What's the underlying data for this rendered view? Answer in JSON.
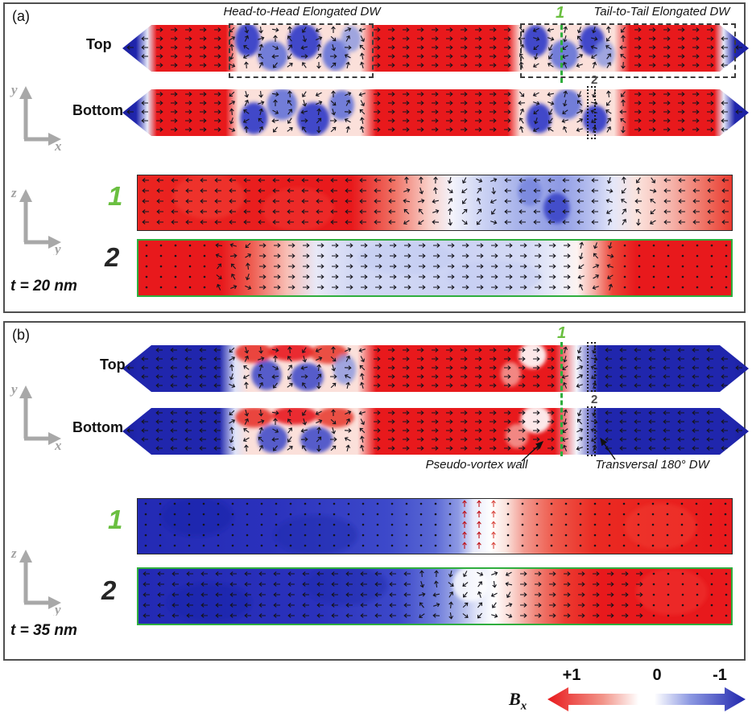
{
  "colors": {
    "red_pos": "#e8191c",
    "blue_neg": "#2026ad",
    "cut_green": "#2fae3e",
    "label_green": "#6abf40",
    "axis_gray": "#a2a2a2",
    "panel_border": "#4f4f4f"
  },
  "axes": {
    "x": "x",
    "y": "y",
    "z": "z"
  },
  "panel_a": {
    "tag": "(a)",
    "hh_annotation": "Head-to-Head Elongated DW",
    "tt_annotation": "Tail-to-Tail Elongated DW",
    "top_label": "Top",
    "bottom_label": "Bottom",
    "cut1": "1",
    "cut2": "2",
    "thickness": "t = 20 nm"
  },
  "panel_b": {
    "tag": "(b)",
    "top_label": "Top",
    "bottom_label": "Bottom",
    "cut1": "1",
    "cut2": "2",
    "pseudo_vortex": "Pseudo-vortex wall",
    "transversal": "Transversal 180° DW",
    "thickness": "t = 35 nm"
  },
  "colorbar": {
    "symbol": "B",
    "subscript": "x",
    "tick_pos": "+1",
    "tick_zero": "0",
    "tick_neg": "-1",
    "gradient": [
      [
        0,
        "#e8191c"
      ],
      [
        28,
        "#f2958a"
      ],
      [
        46,
        "#ffffff"
      ],
      [
        54,
        "#ffffff"
      ],
      [
        72,
        "#8d99e2"
      ],
      [
        100,
        "#2026ad"
      ]
    ]
  },
  "strips": {
    "a_top": {
      "shape": "pointed",
      "stops": [
        [
          0,
          "#1b1f9e"
        ],
        [
          2.2,
          "#2026ad"
        ],
        [
          4,
          "#e6e9f8"
        ],
        [
          5.5,
          "#e8191c"
        ],
        [
          16.5,
          "#e8191c"
        ],
        [
          18.5,
          "#fbe0da"
        ],
        [
          38,
          "#fbe0da"
        ],
        [
          40.5,
          "#e8191c"
        ],
        [
          61.5,
          "#e8191c"
        ],
        [
          63.5,
          "#fbe0da"
        ],
        [
          78.5,
          "#fbe0da"
        ],
        [
          81,
          "#e8191c"
        ],
        [
          94.5,
          "#e8191c"
        ],
        [
          96,
          "#e6e9f8"
        ],
        [
          97.8,
          "#2026ad"
        ],
        [
          100,
          "#1b1f9e"
        ]
      ],
      "blobs": [
        [
          20,
          32,
          2.0,
          36,
          "#2e39c8",
          0.9
        ],
        [
          24,
          66,
          2.4,
          32,
          "#5a6bd8",
          0.85
        ],
        [
          29,
          36,
          2.6,
          38,
          "#2e39c8",
          0.9
        ],
        [
          34,
          64,
          2.1,
          34,
          "#5a6bd8",
          0.85
        ],
        [
          36.5,
          30,
          1.6,
          28,
          "#8a97e0",
          0.8
        ],
        [
          66,
          34,
          2.0,
          34,
          "#2e39c8",
          0.9
        ],
        [
          70.5,
          64,
          2.3,
          32,
          "#5a6bd8",
          0.85
        ],
        [
          75,
          34,
          2.0,
          32,
          "#2e39c8",
          0.9
        ],
        [
          77,
          62,
          1.6,
          28,
          "#8a97e0",
          0.8
        ]
      ],
      "arrows": [
        {
          "to": 4.8,
          "dir": "left"
        },
        {
          "to": 17.4,
          "dir": "right"
        },
        {
          "to": 39.5,
          "dir": "mix"
        },
        {
          "to": 62.5,
          "dir": "right"
        },
        {
          "to": 80.5,
          "dir": "mix"
        },
        {
          "to": 95.2,
          "dir": "right"
        },
        {
          "to": 100,
          "dir": "left"
        }
      ]
    },
    "a_bottom": {
      "shape": "pointed",
      "stops": [
        [
          0,
          "#1b1f9e"
        ],
        [
          2.2,
          "#2026ad"
        ],
        [
          4,
          "#e6e9f8"
        ],
        [
          5.5,
          "#e8191c"
        ],
        [
          16.5,
          "#e8191c"
        ],
        [
          18.5,
          "#fbe0da"
        ],
        [
          38,
          "#fbe0da"
        ],
        [
          40.5,
          "#e8191c"
        ],
        [
          61.5,
          "#e8191c"
        ],
        [
          63.5,
          "#fbe0da"
        ],
        [
          78.5,
          "#fbe0da"
        ],
        [
          81,
          "#e8191c"
        ],
        [
          94.5,
          "#e8191c"
        ],
        [
          96,
          "#e6e9f8"
        ],
        [
          97.8,
          "#2026ad"
        ],
        [
          100,
          "#1b1f9e"
        ]
      ],
      "blobs": [
        [
          21,
          62,
          2.2,
          34,
          "#2e39c8",
          0.9
        ],
        [
          25.5,
          32,
          2.4,
          34,
          "#5a6bd8",
          0.85
        ],
        [
          30.5,
          64,
          2.6,
          36,
          "#2e39c8",
          0.9
        ],
        [
          35,
          34,
          2.0,
          32,
          "#5a6bd8",
          0.85
        ],
        [
          66.5,
          62,
          2.0,
          32,
          "#2e39c8",
          0.9
        ],
        [
          71,
          32,
          2.3,
          32,
          "#5a6bd8",
          0.85
        ],
        [
          75.5,
          64,
          2.0,
          30,
          "#2e39c8",
          0.9
        ]
      ],
      "arrows": [
        {
          "to": 4.8,
          "dir": "left"
        },
        {
          "to": 17.4,
          "dir": "right"
        },
        {
          "to": 39.5,
          "dir": "mix"
        },
        {
          "to": 62.5,
          "dir": "right"
        },
        {
          "to": 80.5,
          "dir": "mix"
        },
        {
          "to": 95.2,
          "dir": "right"
        },
        {
          "to": 100,
          "dir": "left"
        }
      ]
    },
    "b_top": {
      "shape": "pointed",
      "stops": [
        [
          0,
          "#1b1f9e"
        ],
        [
          2.5,
          "#2026ad"
        ],
        [
          15.5,
          "#2026ad"
        ],
        [
          18,
          "#dfe3f8"
        ],
        [
          20,
          "#fbe0da"
        ],
        [
          37.5,
          "#fbe0da"
        ],
        [
          40.5,
          "#e8191c"
        ],
        [
          69,
          "#e8191c"
        ],
        [
          72.5,
          "#f4f4fb"
        ],
        [
          76,
          "#2026ad"
        ],
        [
          97.5,
          "#2026ad"
        ],
        [
          100,
          "#1b1f9e"
        ]
      ],
      "blobs": [
        [
          21,
          16,
          3.0,
          22,
          "#e8352c",
          0.9
        ],
        [
          27,
          14,
          3.6,
          20,
          "#e8191c",
          0.9
        ],
        [
          33,
          18,
          3.0,
          22,
          "#e8352c",
          0.85
        ],
        [
          23,
          64,
          2.4,
          32,
          "#3a46c8",
          0.85
        ],
        [
          29.5,
          68,
          2.6,
          30,
          "#3a46c8",
          0.85
        ],
        [
          35.5,
          52,
          1.8,
          32,
          "#8a97e0",
          0.8
        ],
        [
          65.5,
          22,
          2.2,
          28,
          "#ffffff",
          0.9
        ],
        [
          62,
          62,
          1.6,
          26,
          "#f6b6ae",
          0.7
        ]
      ],
      "arrows": [
        {
          "to": 17.4,
          "dir": "left"
        },
        {
          "to": 39.5,
          "dir": "mix"
        },
        {
          "to": 70,
          "dir": "right"
        },
        {
          "to": 76.5,
          "dir": "mix"
        },
        {
          "to": 100,
          "dir": "left"
        }
      ]
    },
    "b_bottom": {
      "shape": "pointed",
      "stops": [
        [
          0,
          "#1b1f9e"
        ],
        [
          2.5,
          "#2026ad"
        ],
        [
          15.5,
          "#2026ad"
        ],
        [
          18,
          "#dfe3f8"
        ],
        [
          20,
          "#fbe0da"
        ],
        [
          37.5,
          "#fbe0da"
        ],
        [
          40.5,
          "#e8191c"
        ],
        [
          69,
          "#e8191c"
        ],
        [
          72.5,
          "#f4f4fb"
        ],
        [
          76,
          "#2026ad"
        ],
        [
          97.5,
          "#2026ad"
        ],
        [
          100,
          "#1b1f9e"
        ]
      ],
      "blobs": [
        [
          21,
          20,
          3.0,
          22,
          "#e8352c",
          0.9
        ],
        [
          27.5,
          16,
          3.6,
          20,
          "#e8191c",
          0.9
        ],
        [
          34,
          20,
          3.0,
          22,
          "#e8352c",
          0.85
        ],
        [
          24,
          66,
          2.4,
          30,
          "#3a46c8",
          0.85
        ],
        [
          31,
          68,
          2.6,
          28,
          "#3a46c8",
          0.85
        ],
        [
          66,
          24,
          2.4,
          30,
          "#ffffff",
          0.9
        ],
        [
          63,
          60,
          1.8,
          26,
          "#f6b6ae",
          0.7
        ]
      ],
      "arrows": [
        {
          "to": 17.4,
          "dir": "left"
        },
        {
          "to": 39.5,
          "dir": "mix"
        },
        {
          "to": 70,
          "dir": "right"
        },
        {
          "to": 76.5,
          "dir": "mix"
        },
        {
          "to": 100,
          "dir": "left"
        }
      ]
    },
    "a_cut1": {
      "shape": "rect",
      "stops": [
        [
          0,
          "#ea2420"
        ],
        [
          36,
          "#e8191c"
        ],
        [
          43,
          "#ef6f62"
        ],
        [
          49,
          "#f9cfc8"
        ],
        [
          53,
          "#f3f3fb"
        ],
        [
          58,
          "#ccd3f4"
        ],
        [
          64,
          "#a8b3ea"
        ],
        [
          71,
          "#8e9ae4"
        ],
        [
          76,
          "#b4bdee"
        ],
        [
          80,
          "#e4e7f9"
        ],
        [
          84,
          "#fbe3dd"
        ],
        [
          90,
          "#f5b1a8"
        ],
        [
          96,
          "#ee6a5c"
        ],
        [
          100,
          "#ea3a30"
        ]
      ],
      "blobs": [
        [
          70.5,
          60,
          2.2,
          28,
          "#3a46c8",
          0.9
        ],
        [
          66,
          30,
          2.0,
          26,
          "#6c7cdc",
          0.7
        ],
        [
          12,
          38,
          6,
          42,
          "#f23f36",
          0.5
        ],
        [
          27,
          62,
          6,
          40,
          "#f23f36",
          0.4
        ]
      ],
      "arrows": [
        {
          "to": 44,
          "dir": "left"
        },
        {
          "to": 62,
          "dir": "mix"
        },
        {
          "to": 78,
          "dir": "left"
        },
        {
          "to": 88,
          "dir": "mix"
        },
        {
          "to": 100,
          "dir": "left"
        }
      ]
    },
    "a_cut2": {
      "shape": "rect",
      "stops": [
        [
          0,
          "#e8191c"
        ],
        [
          14,
          "#e8191c"
        ],
        [
          19,
          "#ee5c50"
        ],
        [
          25,
          "#f8bdb4"
        ],
        [
          30,
          "#e8e8f7"
        ],
        [
          36,
          "#d2d8f4"
        ],
        [
          55,
          "#ccd3f4"
        ],
        [
          66,
          "#d6dbf5"
        ],
        [
          71,
          "#eceef9"
        ],
        [
          74,
          "#fdf3f1"
        ],
        [
          77,
          "#f6aca2"
        ],
        [
          80,
          "#ec4438"
        ],
        [
          84,
          "#e8191c"
        ],
        [
          100,
          "#e8191c"
        ]
      ],
      "blobs": [
        [
          45,
          32,
          8,
          30,
          "#c3cbf1",
          0.6
        ],
        [
          60,
          66,
          8,
          30,
          "#c3cbf1",
          0.5
        ]
      ],
      "arrows": [
        {
          "to": 12,
          "dir": "dot"
        },
        {
          "to": 20,
          "dir": "mix"
        },
        {
          "to": 74,
          "dir": "right"
        },
        {
          "to": 80,
          "dir": "mix"
        },
        {
          "to": 100,
          "dir": "dot"
        }
      ]
    },
    "b_cut1": {
      "shape": "rect",
      "stops": [
        [
          0,
          "#232ab4"
        ],
        [
          22,
          "#2a31bc"
        ],
        [
          42,
          "#3d49ca"
        ],
        [
          50,
          "#5a68d4"
        ],
        [
          54,
          "#8e9ae4"
        ],
        [
          56.5,
          "#e8eafa"
        ],
        [
          59.5,
          "#ffffff"
        ],
        [
          62,
          "#fbe3dd"
        ],
        [
          65,
          "#f29a90"
        ],
        [
          70,
          "#ee5a4c"
        ],
        [
          77,
          "#ea2a22"
        ],
        [
          100,
          "#e8191c"
        ]
      ],
      "blobs": [
        [
          10,
          32,
          6,
          36,
          "#1b22a8",
          0.5
        ],
        [
          30,
          66,
          7,
          36,
          "#1b22a8",
          0.4
        ],
        [
          88,
          50,
          6,
          42,
          "#f23f36",
          0.45
        ]
      ],
      "arrows": [
        {
          "to": 53,
          "dir": "dot"
        },
        {
          "to": 57.5,
          "dir": "up",
          "c": "#c01016"
        },
        {
          "to": 61.5,
          "dir": "up",
          "c": "#d8443c"
        },
        {
          "to": 100,
          "dir": "dot"
        }
      ]
    },
    "b_cut2": {
      "shape": "rect",
      "stops": [
        [
          0,
          "#232ab4"
        ],
        [
          30,
          "#2a31bc"
        ],
        [
          44,
          "#3d49ca"
        ],
        [
          50,
          "#6b79da"
        ],
        [
          54,
          "#a5b0e8"
        ],
        [
          57,
          "#dfe3f8"
        ],
        [
          60,
          "#ffffff"
        ],
        [
          63,
          "#fbd8d2"
        ],
        [
          67,
          "#f0867a"
        ],
        [
          72,
          "#ec3a30"
        ],
        [
          78,
          "#e8191c"
        ],
        [
          100,
          "#e8191c"
        ]
      ],
      "blobs": [
        [
          12,
          62,
          7,
          36,
          "#1b22a8",
          0.5
        ],
        [
          35,
          30,
          7,
          36,
          "#1b22a8",
          0.4
        ],
        [
          56,
          28,
          3,
          32,
          "#ffffff",
          0.8
        ],
        [
          90,
          42,
          6,
          42,
          "#f23f36",
          0.4
        ]
      ],
      "arrows": [
        {
          "to": 46,
          "dir": "left"
        },
        {
          "to": 64,
          "dir": "mix"
        },
        {
          "to": 86,
          "dir": "right"
        },
        {
          "to": 100,
          "dir": "dot"
        }
      ]
    }
  }
}
